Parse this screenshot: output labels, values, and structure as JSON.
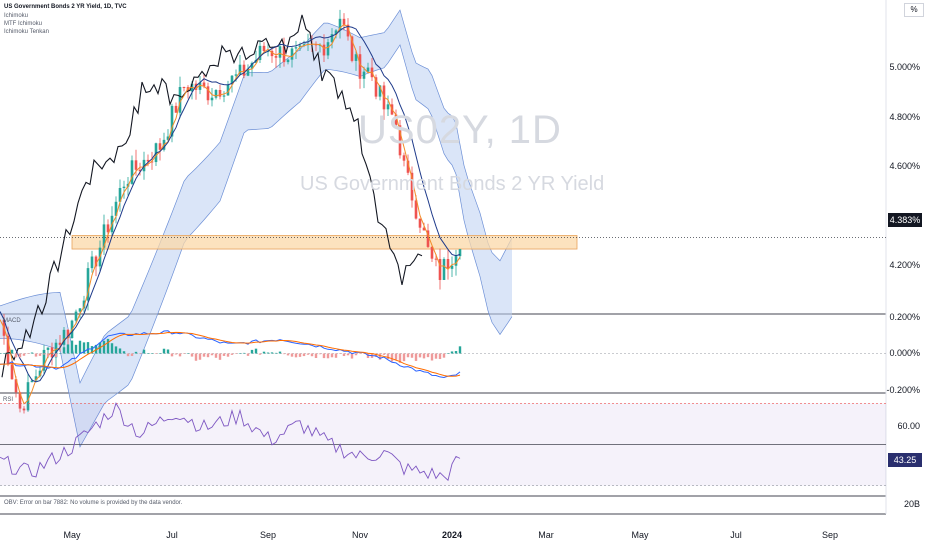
{
  "header": {
    "title": "US Government Bonds 2 YR Yield, 1D, TVC",
    "indicators": [
      "Ichimoku",
      "MTF Ichimoku",
      "Ichimoku Tenkan"
    ],
    "unit": "%"
  },
  "watermark": {
    "symbol": "US02Y, 1D",
    "name": "US Government Bonds 2 YR Yield"
  },
  "price_axis": {
    "ticks": [
      "5.000%",
      "4.800%",
      "4.600%",
      "4.200%",
      "0.200%",
      "0.000%"
    ],
    "current": "4.383%"
  },
  "macd": {
    "title": "MACD",
    "ticks": [
      "0.200%",
      "0.000%",
      "-0.200%"
    ]
  },
  "rsi": {
    "title": "RSI",
    "ticks": [
      "60.00"
    ],
    "current": "43.25"
  },
  "obv": {
    "note": "OBV: Error on bar 7882: No volume is provided by the data vendor.",
    "tick": "20B"
  },
  "x_axis": {
    "labels": [
      "May",
      "Jul",
      "Sep",
      "Nov",
      "2024",
      "Mar",
      "May",
      "Jul",
      "Sep"
    ]
  },
  "chart_data": [
    {
      "type": "line",
      "title": "US Government Bonds 2 YR Yield, 1D, TVC",
      "ylabel": "%",
      "ylim": [
        4.1,
        5.26
      ],
      "x": [
        "May",
        "Jul",
        "Sep",
        "Nov",
        "2024"
      ],
      "series": [
        {
          "name": "US02Y",
          "values": [
            3.95,
            4.9,
            5.1,
            4.95,
            4.38
          ]
        }
      ],
      "current_price": 4.383,
      "support_zone": [
        4.34,
        4.39
      ],
      "legend": "top-left"
    },
    {
      "type": "bar",
      "title": "MACD",
      "ylim": [
        -0.22,
        0.22
      ],
      "ticks": [
        0.2,
        0.0,
        -0.2
      ],
      "x": [
        "May",
        "Jul",
        "Sep",
        "Nov",
        "2024"
      ],
      "series": [
        {
          "values": [
            -0.05,
            0.12,
            0.08,
            0.01,
            -0.13
          ]
        }
      ]
    },
    {
      "type": "line",
      "title": "RSI",
      "ylim": [
        25,
        75
      ],
      "ticks": [
        60.0
      ],
      "x": [
        "May",
        "Jul",
        "Sep",
        "Nov",
        "2024"
      ],
      "series": [
        {
          "values": [
            40,
            62,
            55,
            45,
            43.25
          ]
        }
      ],
      "current": 43.25
    }
  ]
}
